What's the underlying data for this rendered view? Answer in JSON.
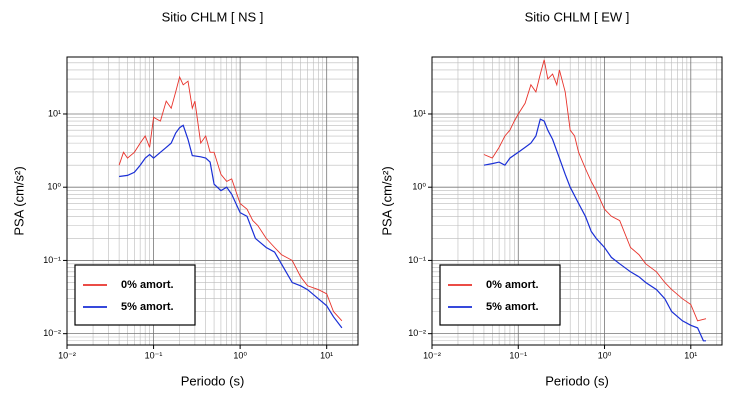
{
  "chart_data": [
    {
      "type": "line",
      "title": "Sitio CHLM [ NS ]",
      "xlabel": "Periodo (s)",
      "ylabel": "PSA (cm/s²)",
      "xscale": "log",
      "yscale": "log",
      "grid": true,
      "legend": "lower left",
      "xlim": [
        0.01,
        23
      ],
      "ylim": [
        0.007,
        60
      ],
      "xticks": [
        {
          "value": 0.01,
          "label": "10⁻²"
        },
        {
          "value": 0.1,
          "label": "10⁻¹"
        },
        {
          "value": 1,
          "label": "10⁰"
        },
        {
          "value": 10,
          "label": "10¹"
        }
      ],
      "yticks": [
        {
          "value": 0.01,
          "label": "10⁻²"
        },
        {
          "value": 0.1,
          "label": "10⁻¹"
        },
        {
          "value": 1,
          "label": "10⁰"
        },
        {
          "value": 10,
          "label": "10¹"
        }
      ],
      "series": [
        {
          "name": "0% amort.",
          "color": "#e8332b",
          "x": [
            0.04,
            0.045,
            0.05,
            0.06,
            0.07,
            0.08,
            0.09,
            0.1,
            0.12,
            0.14,
            0.16,
            0.18,
            0.2,
            0.22,
            0.25,
            0.28,
            0.3,
            0.35,
            0.4,
            0.45,
            0.5,
            0.6,
            0.7,
            0.8,
            1,
            1.2,
            1.4,
            1.6,
            2,
            2.5,
            3,
            4,
            5,
            6,
            8,
            10,
            12,
            15
          ],
          "values": [
            2,
            3,
            2.5,
            3,
            4,
            5,
            3.5,
            9,
            8,
            15,
            12,
            20,
            32,
            25,
            28,
            12,
            15,
            4,
            5,
            3,
            3,
            1.5,
            1.2,
            1.3,
            0.6,
            0.5,
            0.35,
            0.3,
            0.2,
            0.15,
            0.12,
            0.1,
            0.06,
            0.045,
            0.04,
            0.035,
            0.02,
            0.015
          ]
        },
        {
          "name": "5% amort.",
          "color": "#1a2fd6",
          "x": [
            0.04,
            0.05,
            0.06,
            0.07,
            0.08,
            0.09,
            0.1,
            0.12,
            0.14,
            0.16,
            0.18,
            0.2,
            0.22,
            0.25,
            0.28,
            0.35,
            0.4,
            0.45,
            0.5,
            0.6,
            0.7,
            0.8,
            1,
            1.2,
            1.5,
            2,
            2.5,
            3,
            4,
            5,
            6,
            8,
            10,
            12,
            15
          ],
          "values": [
            1.4,
            1.45,
            1.6,
            2,
            2.5,
            2.8,
            2.5,
            3,
            3.5,
            4,
            5.5,
            6.5,
            7,
            4.5,
            2.7,
            2.6,
            2.5,
            2.2,
            1.1,
            0.9,
            1,
            0.8,
            0.45,
            0.4,
            0.2,
            0.15,
            0.13,
            0.09,
            0.05,
            0.045,
            0.04,
            0.03,
            0.024,
            0.017,
            0.012
          ]
        }
      ]
    },
    {
      "type": "line",
      "title": "Sitio CHLM [ EW ]",
      "xlabel": "Periodo (s)",
      "ylabel": "PSA (cm/s²)",
      "xscale": "log",
      "yscale": "log",
      "grid": true,
      "legend": "lower left",
      "xlim": [
        0.01,
        23
      ],
      "ylim": [
        0.007,
        60
      ],
      "xticks": [
        {
          "value": 0.01,
          "label": "10⁻²"
        },
        {
          "value": 0.1,
          "label": "10⁻¹"
        },
        {
          "value": 1,
          "label": "10⁰"
        },
        {
          "value": 10,
          "label": "10¹"
        }
      ],
      "yticks": [
        {
          "value": 0.01,
          "label": "10⁻²"
        },
        {
          "value": 0.1,
          "label": "10⁻¹"
        },
        {
          "value": 1,
          "label": "10⁰"
        },
        {
          "value": 10,
          "label": "10¹"
        }
      ],
      "series": [
        {
          "name": "0% amort.",
          "color": "#e8332b",
          "x": [
            0.04,
            0.05,
            0.06,
            0.07,
            0.08,
            0.09,
            0.1,
            0.12,
            0.14,
            0.16,
            0.18,
            0.2,
            0.22,
            0.25,
            0.28,
            0.3,
            0.35,
            0.4,
            0.45,
            0.5,
            0.6,
            0.7,
            0.8,
            1,
            1.2,
            1.5,
            2,
            2.5,
            3,
            4,
            5,
            6,
            8,
            10,
            12,
            15
          ],
          "values": [
            2.8,
            2.5,
            3.5,
            5,
            6,
            8,
            10,
            14,
            25,
            20,
            35,
            55,
            30,
            35,
            25,
            40,
            20,
            6,
            5,
            3,
            1.8,
            1.2,
            0.9,
            0.5,
            0.4,
            0.35,
            0.15,
            0.12,
            0.09,
            0.07,
            0.05,
            0.04,
            0.03,
            0.025,
            0.015,
            0.016
          ]
        },
        {
          "name": "5% amort.",
          "color": "#1a2fd6",
          "x": [
            0.04,
            0.05,
            0.06,
            0.07,
            0.08,
            0.1,
            0.12,
            0.14,
            0.16,
            0.18,
            0.2,
            0.22,
            0.25,
            0.3,
            0.35,
            0.4,
            0.5,
            0.6,
            0.7,
            0.8,
            1,
            1.2,
            1.5,
            2,
            2.5,
            3,
            4,
            5,
            6,
            8,
            10,
            12,
            14,
            15
          ],
          "values": [
            2,
            2.1,
            2.2,
            2,
            2.5,
            3,
            3.5,
            4,
            5,
            8.5,
            8,
            6,
            4.5,
            2.5,
            1.5,
            1,
            0.6,
            0.4,
            0.25,
            0.2,
            0.15,
            0.11,
            0.09,
            0.07,
            0.06,
            0.05,
            0.04,
            0.03,
            0.02,
            0.015,
            0.013,
            0.012,
            0.008,
            0.008
          ]
        }
      ]
    }
  ]
}
